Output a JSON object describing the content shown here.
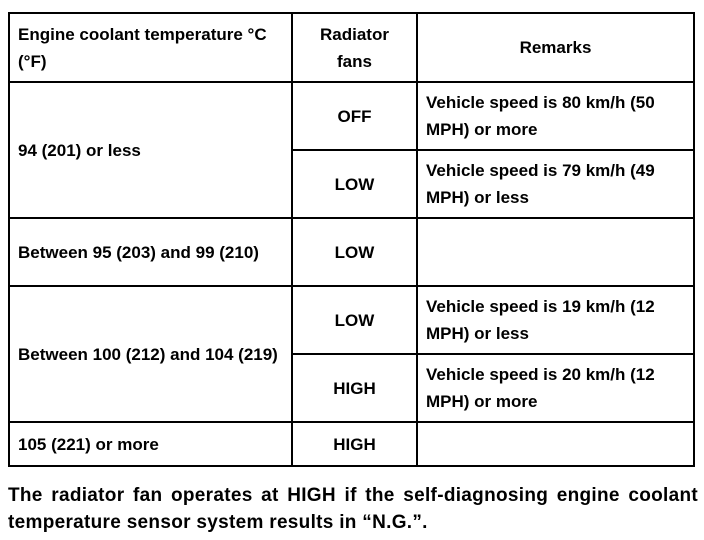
{
  "table": {
    "headers": [
      "Engine coolant temperature °C (°F)",
      "Radiator fans",
      "Remarks"
    ],
    "rows": [
      {
        "temp": "94 (201) or less",
        "fan": "OFF",
        "remarks": "Vehicle speed is 80 km/h (50 MPH) or more"
      },
      {
        "fan": "LOW",
        "remarks": "Vehicle speed is 79 km/h (49 MPH) or less"
      },
      {
        "temp": "Between 95 (203) and 99 (210)",
        "fan": "LOW",
        "remarks": ""
      },
      {
        "temp": "Between 100 (212) and 104 (219)",
        "fan": "LOW",
        "remarks": "Vehicle speed is 19 km/h (12 MPH) or less"
      },
      {
        "fan": "HIGH",
        "remarks": "Vehicle speed is 20 km/h (12 MPH) or more"
      },
      {
        "temp": "105 (221) or more",
        "fan": "HIGH",
        "remarks": ""
      }
    ]
  },
  "caption": "The radiator fan operates at HIGH if the self-diagnosing engine coolant temperature sensor system results in “N.G.”."
}
